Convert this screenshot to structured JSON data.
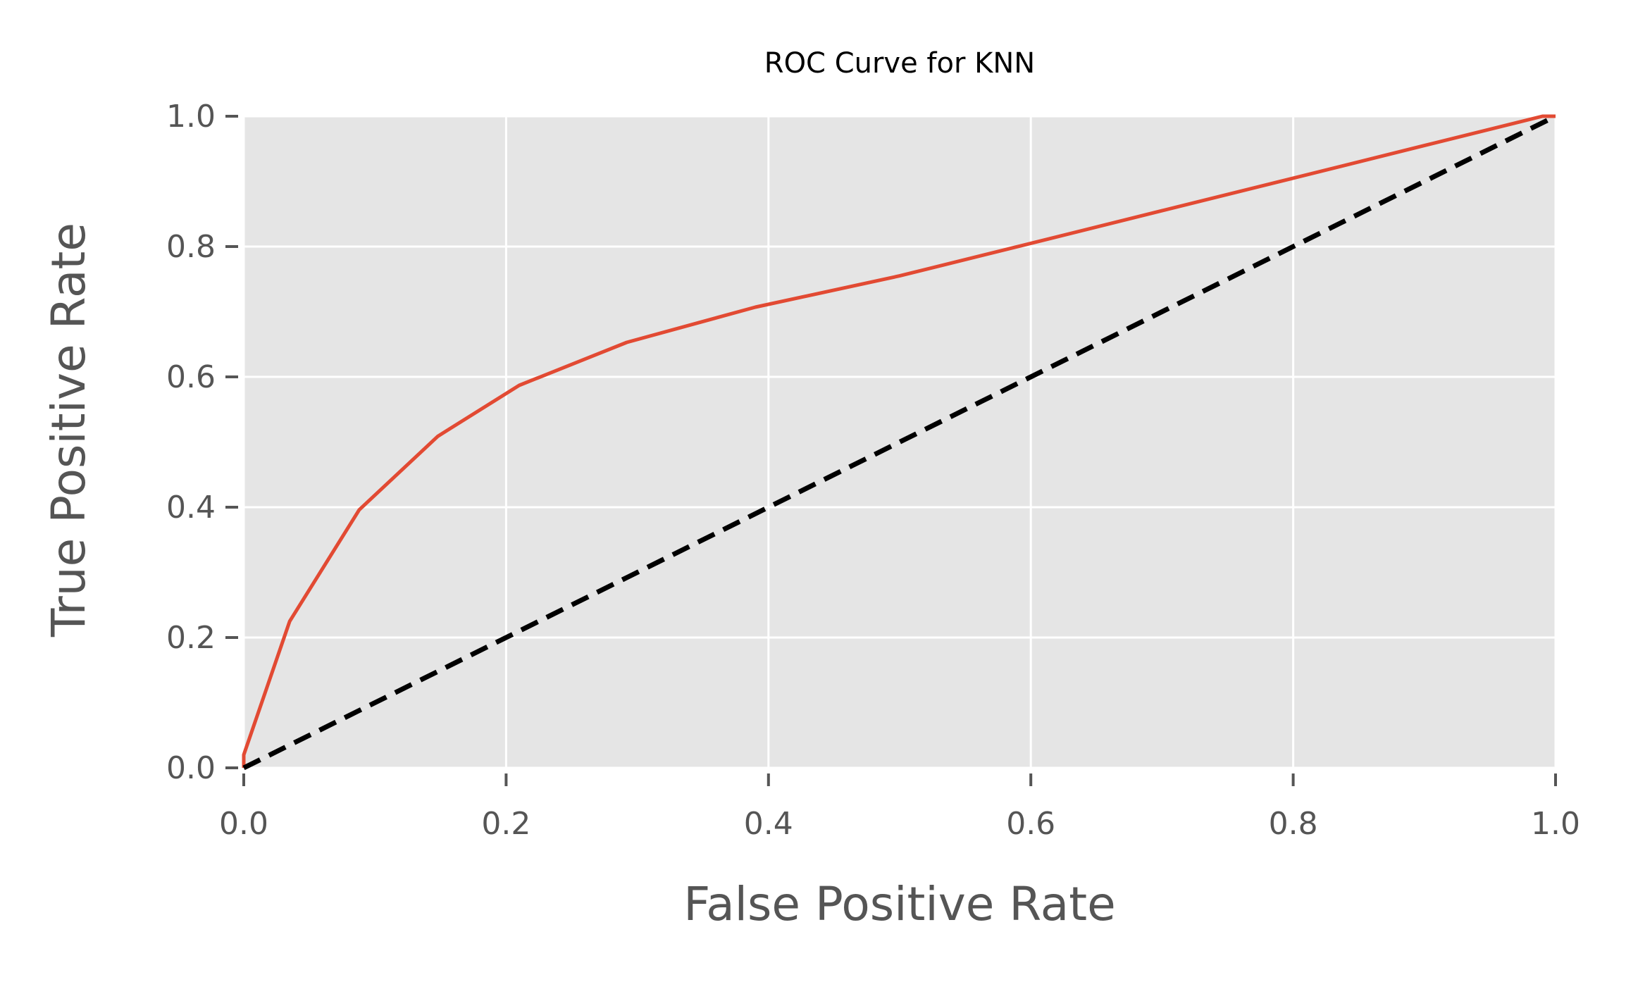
{
  "chart_data": {
    "type": "line",
    "title": "ROC Curve for KNN",
    "xlabel": "False Positive Rate",
    "ylabel": "True Positive Rate",
    "xlim": [
      0.0,
      1.0
    ],
    "ylim": [
      0.0,
      1.0
    ],
    "xticks": [
      "0.0",
      "0.2",
      "0.4",
      "0.6",
      "0.8",
      "1.0"
    ],
    "yticks": [
      "0.0",
      "0.2",
      "0.4",
      "0.6",
      "0.8",
      "1.0"
    ],
    "grid": true,
    "background_color": "#e5e5e5",
    "series": [
      {
        "style": "solid",
        "color": "#e24a33",
        "x": [
          0.0,
          0.0,
          0.035,
          0.088,
          0.148,
          0.21,
          0.292,
          0.39,
          0.5,
          0.6,
          0.7,
          0.8,
          0.9,
          0.99,
          1.0
        ],
        "y": [
          0.0,
          0.02,
          0.225,
          0.396,
          0.509,
          0.587,
          0.653,
          0.707,
          0.755,
          0.805,
          0.855,
          0.905,
          0.955,
          1.0,
          1.0
        ]
      },
      {
        "style": "dashed",
        "color": "#000000",
        "x": [
          0.0,
          1.0
        ],
        "y": [
          0.0,
          1.0
        ]
      }
    ]
  }
}
